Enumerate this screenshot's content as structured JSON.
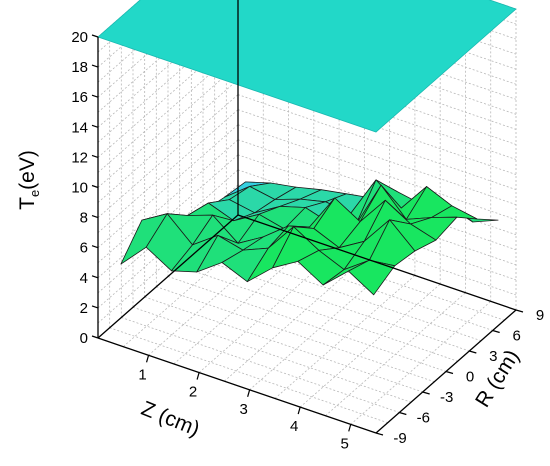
{
  "chart_data": {
    "type": "surface",
    "title": "",
    "zlabel": {
      "main": "T",
      "sub": "e",
      "unit": "(eV)"
    },
    "xlabel": "Z (cm)",
    "ylabel": "R (cm)",
    "zticks": [
      "0",
      "2",
      "4",
      "6",
      "8",
      "10",
      "12",
      "14",
      "16",
      "18",
      "20"
    ],
    "xticks": [
      "1",
      "2",
      "3",
      "4",
      "5"
    ],
    "yticks": [
      "-9",
      "-6",
      "-3",
      "0",
      "3",
      "6",
      "9"
    ],
    "zlim": [
      0,
      20
    ],
    "xlim": [
      0,
      5.5
    ],
    "ylim": [
      -9,
      9
    ],
    "grid": true,
    "colormap": [
      "#34cfe0",
      "#2bd8a8",
      "#1fe07a",
      "#18e660",
      "#2ae63f"
    ],
    "z_grid_x": [
      0.3,
      0.8,
      1.3,
      1.8,
      2.3,
      2.8,
      3.3,
      3.8,
      4.3,
      4.8,
      5.3
    ],
    "z_grid_y": [
      -8,
      -5.3,
      -2.7,
      0,
      2.7,
      5.3,
      8
    ],
    "z_surface": [
      [
        4.8,
        6.5,
        5.5,
        6.0,
        7.2,
        6.5,
        8.0,
        9.0,
        8.0,
        9.5,
        8.5
      ],
      [
        6.5,
        7.5,
        6.0,
        7.2,
        6.8,
        7.5,
        9.5,
        8.5,
        7.8,
        9.0,
        9.2
      ],
      [
        5.0,
        6.2,
        6.8,
        5.5,
        6.5,
        7.8,
        8.2,
        7.5,
        8.5,
        10.5,
        9.0
      ],
      [
        4.0,
        5.8,
        5.2,
        6.2,
        5.8,
        6.5,
        9.0,
        8.0,
        10.0,
        9.0,
        8.5
      ],
      [
        3.5,
        4.8,
        4.5,
        5.5,
        6.0,
        5.5,
        6.0,
        9.2,
        7.5,
        8.2,
        8.8
      ],
      [
        3.2,
        4.5,
        4.2,
        4.8,
        5.2,
        5.0,
        7.8,
        6.5,
        8.5,
        7.8,
        7.5
      ],
      [
        3.0,
        3.5,
        3.8,
        4.2,
        4.5,
        4.8,
        5.8,
        5.5,
        6.0,
        5.5,
        6.2
      ]
    ],
    "plane_level": 20
  }
}
